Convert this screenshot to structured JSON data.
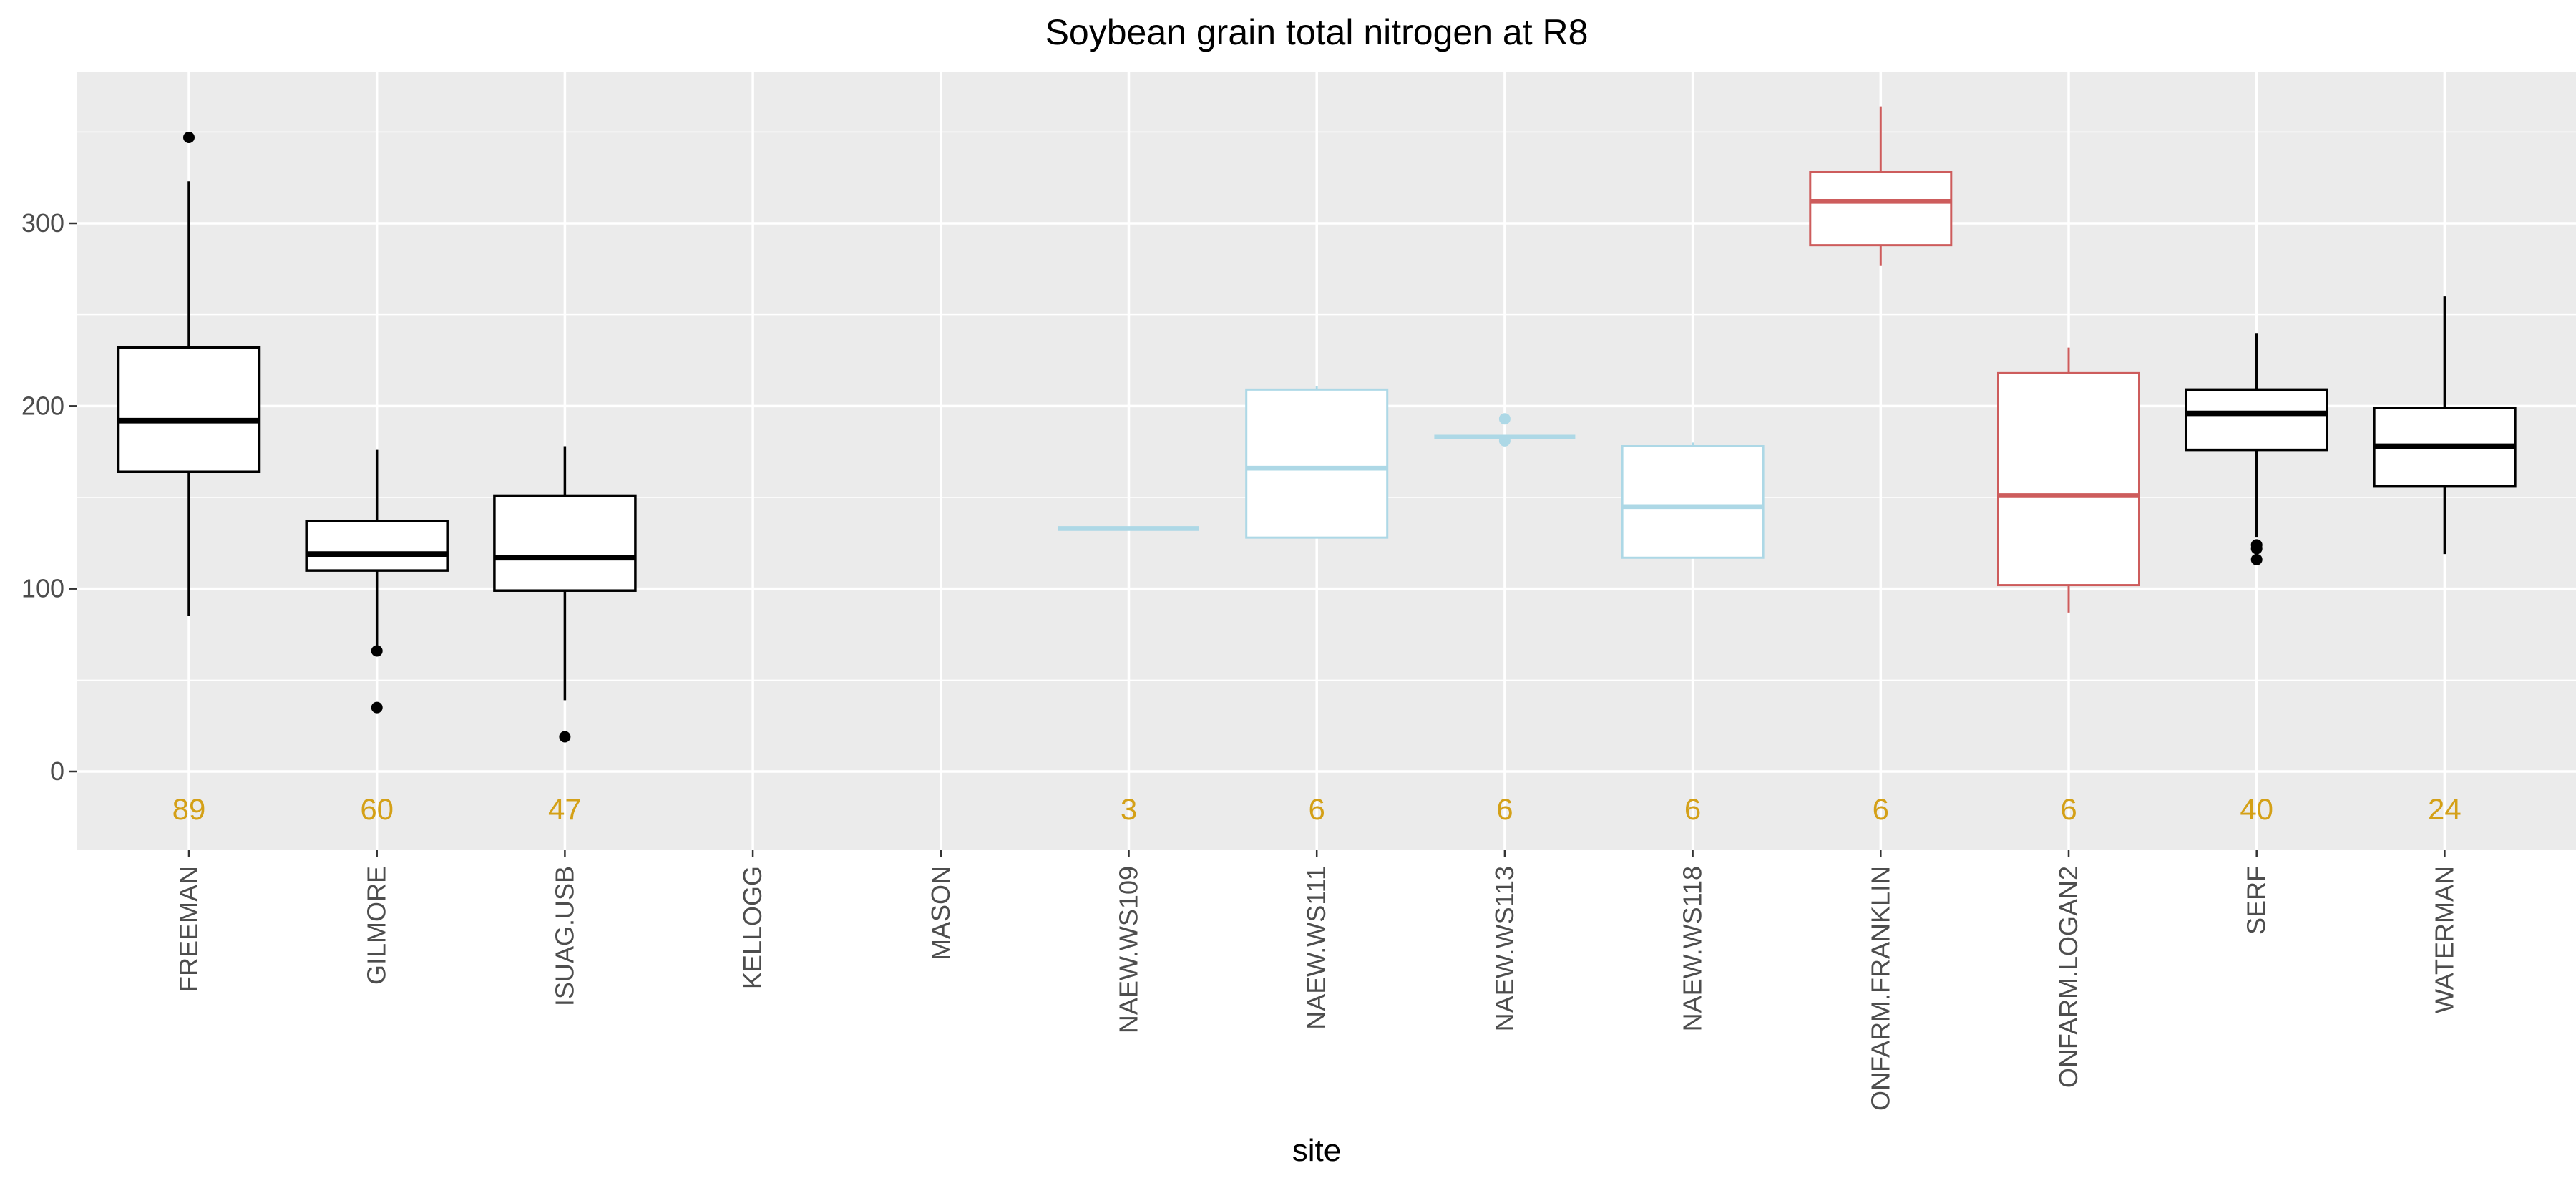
{
  "chart_data": {
    "type": "boxplot",
    "title": "Soybean grain total nitrogen at R8",
    "xlabel": "site",
    "ylabel": "",
    "ylim": [
      -43,
      382
    ],
    "yticks": [
      0,
      100,
      200,
      300
    ],
    "grid": true,
    "colors": {
      "black": "#000000",
      "lightblue": "#add8e6",
      "red": "#cd5c5c",
      "count": "#d4a017",
      "panel": "#ebebeb",
      "grid": "#ffffff"
    },
    "categories": [
      "FREEMAN",
      "GILMORE",
      "ISUAG.USB",
      "KELLOGG",
      "MASON",
      "NAEW.WS109",
      "NAEW.WS111",
      "NAEW.WS113",
      "NAEW.WS118",
      "ONFARM.FRANKLIN",
      "ONFARM.LOGAN2",
      "SERF",
      "WATERMAN"
    ],
    "boxes": [
      {
        "site": "FREEMAN",
        "color": "black",
        "min": 85,
        "q1": 164,
        "median": 192,
        "q3": 232,
        "max": 323,
        "outliers": [
          347
        ],
        "count": "89"
      },
      {
        "site": "GILMORE",
        "color": "black",
        "min": 69,
        "q1": 110,
        "median": 119,
        "q3": 137,
        "max": 176,
        "outliers": [
          66,
          35
        ],
        "count": "60"
      },
      {
        "site": "ISUAG.USB",
        "color": "black",
        "min": 39,
        "q1": 99,
        "median": 117,
        "q3": 151,
        "max": 178,
        "outliers": [
          19
        ],
        "count": "47"
      },
      {
        "site": "KELLOGG",
        "color": "black",
        "empty": true,
        "count": ""
      },
      {
        "site": "MASON",
        "color": "black",
        "empty": true,
        "count": ""
      },
      {
        "site": "NAEW.WS109",
        "color": "lightblue",
        "min": 133,
        "q1": 133,
        "median": 133,
        "q3": 133,
        "max": 133,
        "outliers": [],
        "count": "3"
      },
      {
        "site": "NAEW.WS111",
        "color": "lightblue",
        "min": 128,
        "q1": 128,
        "median": 166,
        "q3": 209,
        "max": 211,
        "outliers": [],
        "count": "6"
      },
      {
        "site": "NAEW.WS113",
        "color": "lightblue",
        "min": 183,
        "q1": 183,
        "median": 183,
        "q3": 183,
        "max": 183,
        "outliers": [
          193,
          181
        ],
        "count": "6"
      },
      {
        "site": "NAEW.WS118",
        "color": "lightblue",
        "min": 117,
        "q1": 117,
        "median": 145,
        "q3": 178,
        "max": 180,
        "outliers": [],
        "count": "6"
      },
      {
        "site": "ONFARM.FRANKLIN",
        "color": "red",
        "min": 277,
        "q1": 288,
        "median": 312,
        "q3": 328,
        "max": 364,
        "outliers": [],
        "count": "6"
      },
      {
        "site": "ONFARM.LOGAN2",
        "color": "red",
        "min": 87,
        "q1": 102,
        "median": 151,
        "q3": 218,
        "max": 232,
        "outliers": [],
        "count": "6"
      },
      {
        "site": "SERF",
        "color": "black",
        "min": 128,
        "q1": 176,
        "median": 196,
        "q3": 209,
        "max": 240,
        "outliers": [
          124,
          122,
          116
        ],
        "count": "40"
      },
      {
        "site": "WATERMAN",
        "color": "black",
        "min": 119,
        "q1": 156,
        "median": 178,
        "q3": 199,
        "max": 260,
        "outliers": [],
        "count": "24"
      }
    ]
  }
}
